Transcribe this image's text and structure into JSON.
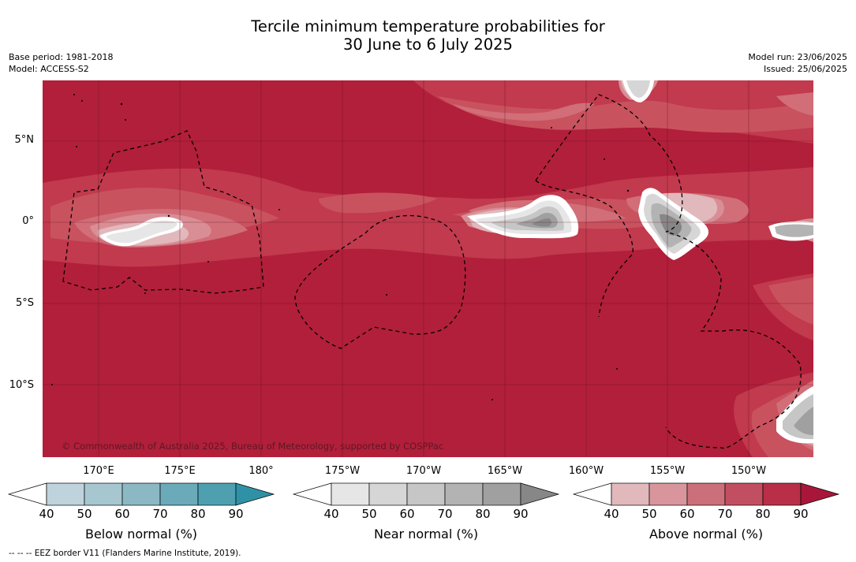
{
  "title": {
    "line1": "Tercile minimum temperature probabilities for",
    "line2": "30 June to 6 July 2025"
  },
  "meta": {
    "base_period": "Base period: 1981-2018",
    "model": "Model: ACCESS-S2",
    "model_run": "Model run: 23/06/2025",
    "issued": "Issued: 25/06/2025"
  },
  "map": {
    "copyright": "© Commonwealth of Australia 2025, Bureau of Meteorology, supported by COSPPac",
    "lat_labels": [
      "5°N",
      "0°",
      "5°S",
      "10°S"
    ],
    "lon_labels": [
      "170°E",
      "175°E",
      "180°",
      "175°W",
      "170°W",
      "165°W",
      "160°W",
      "155°W",
      "150°W"
    ],
    "colors": {
      "above_90": "#b21f3a",
      "above_80": "#c13a4d",
      "above_70": "#c9525f",
      "above_60": "#d16e78",
      "above_50": "#d98e95",
      "above_40": "#e1b8bc",
      "near_40": "#e6e6e6",
      "near_50": "#d6d6d6",
      "near_60": "#c6c6c6",
      "near_70": "#b3b3b3",
      "near_80": "#a0a0a0",
      "near_90": "#878787"
    }
  },
  "colorbars": [
    {
      "title": "Below normal (%)",
      "ticks": [
        "40",
        "50",
        "60",
        "70",
        "80",
        "90"
      ],
      "colors": [
        "#ffffff",
        "#bfd3dc",
        "#a7c7d0",
        "#8cb8c4",
        "#6aaab9",
        "#4ea0b1",
        "#2f91a6"
      ]
    },
    {
      "title": "Near normal (%)",
      "ticks": [
        "40",
        "50",
        "60",
        "70",
        "80",
        "90"
      ],
      "colors": [
        "#ffffff",
        "#e6e6e6",
        "#d6d6d6",
        "#c6c6c6",
        "#b3b3b3",
        "#a0a0a0",
        "#878787"
      ]
    },
    {
      "title": "Above normal (%)",
      "ticks": [
        "40",
        "50",
        "60",
        "70",
        "80",
        "90"
      ],
      "colors": [
        "#ffffff",
        "#e1b8bc",
        "#d8959c",
        "#cb6f7a",
        "#c24f61",
        "#b82f47",
        "#a8173a"
      ]
    }
  ],
  "footnote": "--  --  -- EEZ border V11 (Flanders Marine Institute, 2019)."
}
